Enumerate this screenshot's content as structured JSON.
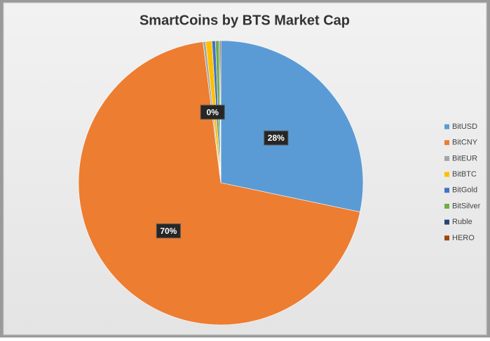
{
  "chart_data": {
    "type": "pie",
    "title": "SmartCoins by BTS Market Cap",
    "categories": [
      "BitUSD",
      "BitCNY",
      "BitEUR",
      "BitBTC",
      "BitGold",
      "BitSilver",
      "Ruble",
      "HERO"
    ],
    "values": [
      28.3,
      69.7,
      0.3,
      0.7,
      0.4,
      0.4,
      0.1,
      0.1
    ],
    "value_labels": [
      "28%",
      "70%",
      "0%",
      null,
      null,
      null,
      null,
      null
    ],
    "colors": [
      "#5b9bd5",
      "#ed7d31",
      "#a5a5a5",
      "#ffc000",
      "#4472c4",
      "#70ad47",
      "#264478",
      "#9e480e"
    ],
    "legend": "right"
  }
}
